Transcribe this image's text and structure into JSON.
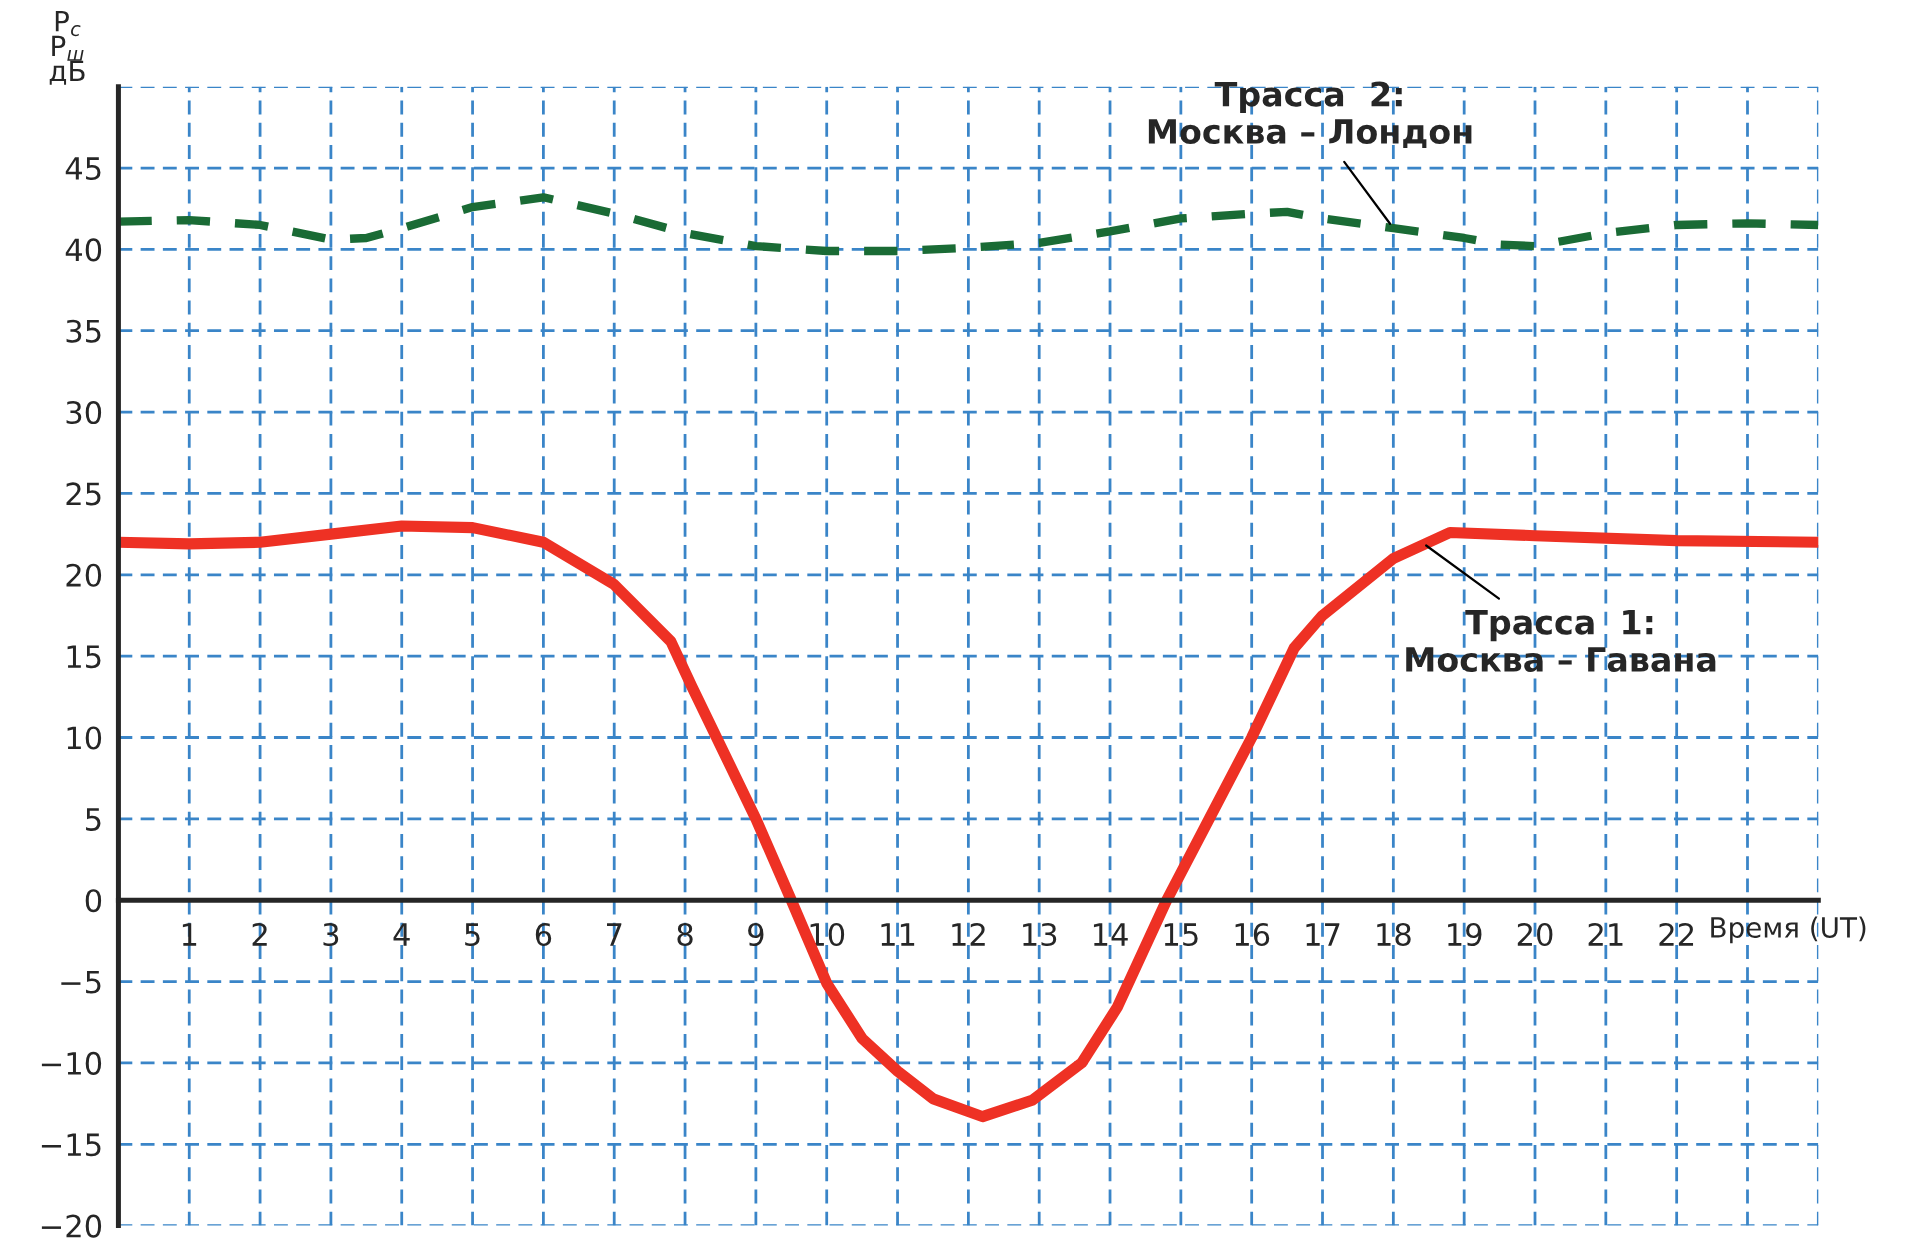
{
  "chart_data": {
    "type": "line",
    "ylabel": "P$_{с}$\nP$_{ш}$\nдБ",
    "xlabel": "Время (UT)",
    "x": [
      0,
      1,
      2,
      3,
      4,
      5,
      6,
      7,
      7.8,
      8.1,
      9,
      9.5,
      10,
      10.5,
      11,
      11.5,
      12.2,
      12.9,
      13.6,
      14.1,
      14.8,
      15.4,
      16,
      16.6,
      17,
      18,
      18.8,
      20,
      22,
      24
    ],
    "series": [
      {
        "color": "#ee3124",
        "line_style": "solid",
        "values": [
          22,
          21.9,
          22,
          22.5,
          23,
          22.9,
          22,
          19.4,
          15.9,
          13.1,
          5,
          0,
          -5.1,
          -8.5,
          -10.5,
          -12.2,
          -13.3,
          -12.3,
          -10,
          -6.6,
          0,
          5,
          10,
          15.5,
          17.5,
          21,
          22.6,
          22.4,
          22.1,
          22
        ]
      },
      {
        "color": "#1a6b35",
        "line_style": "dashed",
        "x": [
          0,
          1,
          2,
          3,
          3.5,
          4,
          5,
          6,
          7,
          8,
          9,
          10,
          11,
          12,
          13,
          14,
          15,
          16,
          16.5,
          17,
          18,
          19,
          19.5,
          20,
          21,
          22,
          23,
          24
        ],
        "values": [
          41.7,
          41.8,
          41.5,
          40.6,
          40.7,
          41.3,
          42.6,
          43.2,
          42.2,
          41,
          40.2,
          39.9,
          39.9,
          40.1,
          40.4,
          41.1,
          41.9,
          42.2,
          42.3,
          41.9,
          41.3,
          40.7,
          40.3,
          40.2,
          41,
          41.5,
          41.6,
          41.5
        ]
      }
    ],
    "annotations": [
      {
        "text": "Трасса  2:\nМосква – Лондон",
        "x": 18,
        "y": 41.3
      },
      {
        "text": "Трасса  1:\nМосква – Гавана",
        "x": 18.4,
        "y": 22
      }
    ],
    "xlim": [
      0,
      24
    ],
    "ylim": [
      -20,
      50
    ],
    "xticks": [
      1,
      2,
      3,
      4,
      5,
      6,
      7,
      8,
      9,
      10,
      11,
      12,
      13,
      14,
      15,
      16,
      17,
      18,
      19,
      20,
      21,
      22,
      {
        "value": 23,
        "label": null
      },
      {
        "value": 24,
        "label": null
      }
    ],
    "yticks": [
      {
        "value": -20,
        "label": "−20"
      },
      {
        "value": -15,
        "label": "−15"
      },
      {
        "value": -10,
        "label": "−10"
      },
      {
        "value": -5,
        "label": "−5"
      },
      0,
      5,
      10,
      15,
      20,
      25,
      30,
      35,
      40,
      45,
      {
        "value": 50,
        "label": null
      }
    ],
    "grid": true,
    "legend": false,
    "marker": "none"
  }
}
